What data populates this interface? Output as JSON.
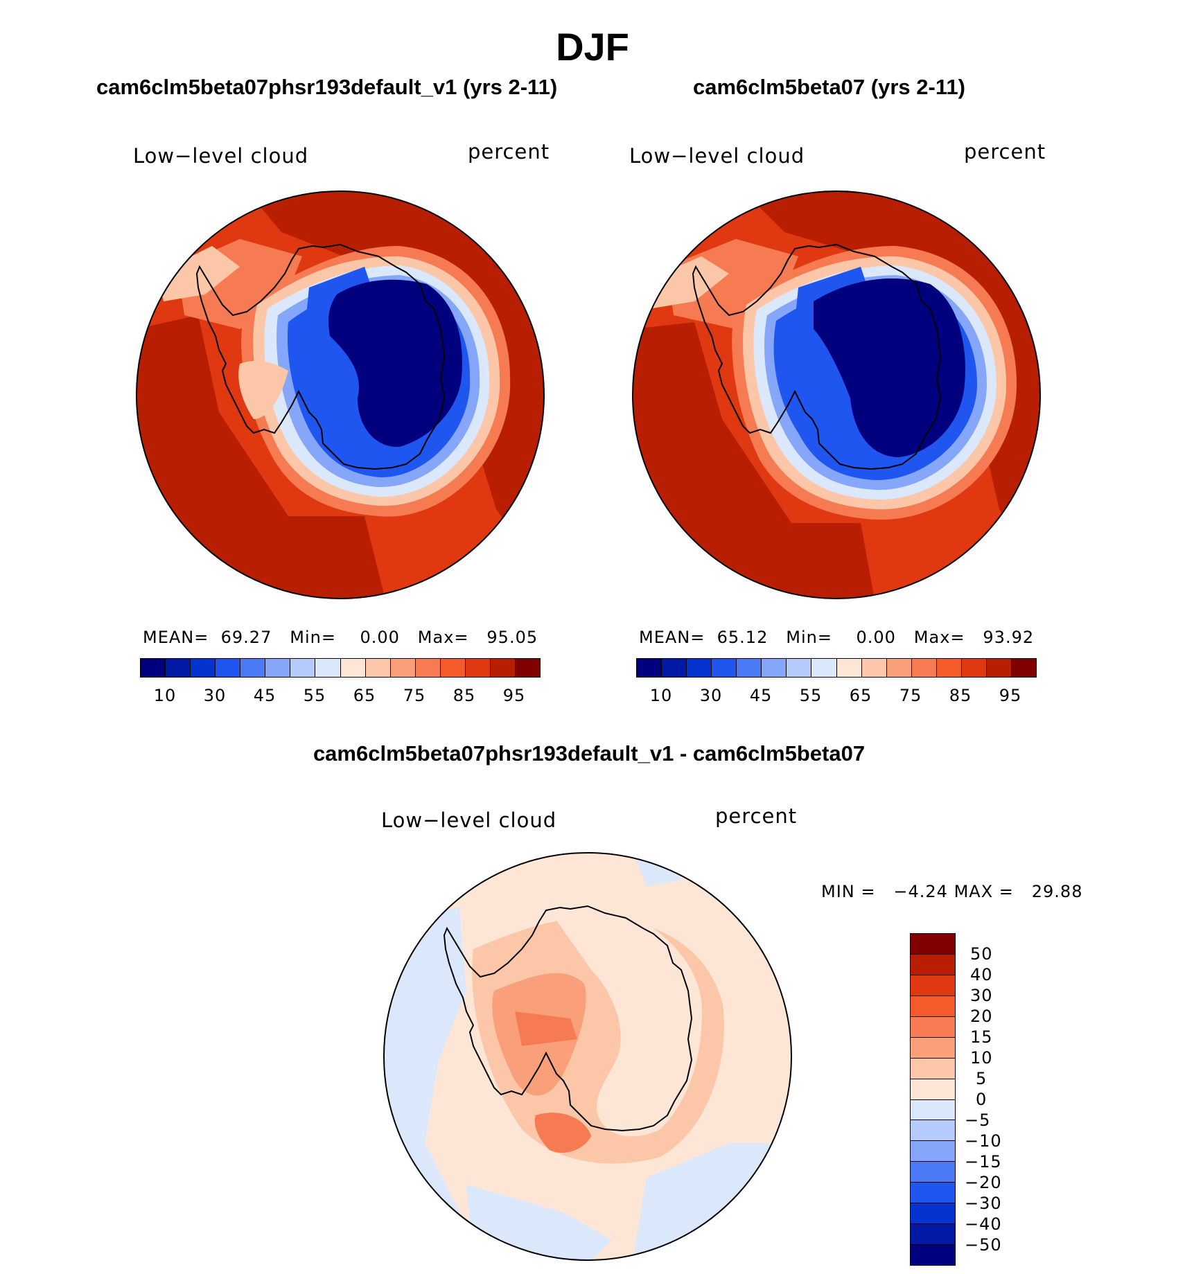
{
  "figure": {
    "title": "DJF"
  },
  "panels": [
    {
      "title": "cam6clm5beta07phsr193default_v1 (yrs 2-11)",
      "variable": "Low−level cloud",
      "units": "percent",
      "stats": {
        "mean_label": "MEAN=",
        "mean": "69.27",
        "min_label": "Min=",
        "min": "0.00",
        "max_label": "Max=",
        "max": "95.05"
      },
      "colorbar_ticks": [
        "10",
        "30",
        "45",
        "55",
        "65",
        "75",
        "85",
        "95"
      ],
      "field_level": 0.0
    },
    {
      "title": "cam6clm5beta07 (yrs 2-11)",
      "variable": "Low−level cloud",
      "units": "percent",
      "stats": {
        "mean_label": "MEAN=",
        "mean": "65.12",
        "min_label": "Min=",
        "min": "0.00",
        "max_label": "Max=",
        "max": "93.92"
      },
      "colorbar_ticks": [
        "10",
        "30",
        "45",
        "55",
        "65",
        "75",
        "85",
        "95"
      ],
      "field_level": 0.0
    }
  ],
  "difference": {
    "title": "cam6clm5beta07phsr193default_v1 - cam6clm5beta07",
    "variable": "Low−level cloud",
    "units": "percent",
    "stats": {
      "min_label": "MIN =",
      "min": "−4.24",
      "max_label": "MAX =",
      "max": "29.88"
    },
    "colorbar_ticks": [
      "50",
      "40",
      "30",
      "20",
      "15",
      "10",
      "5",
      "0",
      "−5",
      "−10",
      "−15",
      "−20",
      "−30",
      "−40",
      "−50"
    ]
  },
  "colors": {
    "abs_scale": [
      "#00007f",
      "#0219a5",
      "#0533d0",
      "#1f56ef",
      "#4a7af5",
      "#85a6f9",
      "#b5cbfb",
      "#dbe8fc",
      "#fde6d5",
      "#fcc6a8",
      "#f9a07b",
      "#f77b52",
      "#f55a2a",
      "#e03810",
      "#b81f02",
      "#800000"
    ],
    "diff_scale": [
      "#800000",
      "#b81f02",
      "#e03810",
      "#f55a2a",
      "#f77b52",
      "#f9a07b",
      "#fcc6a8",
      "#fde6d5",
      "#dbe8fc",
      "#b5cbfb",
      "#85a6f9",
      "#4a7af5",
      "#1f56ef",
      "#0533d0",
      "#0219a5",
      "#00007f"
    ]
  }
}
